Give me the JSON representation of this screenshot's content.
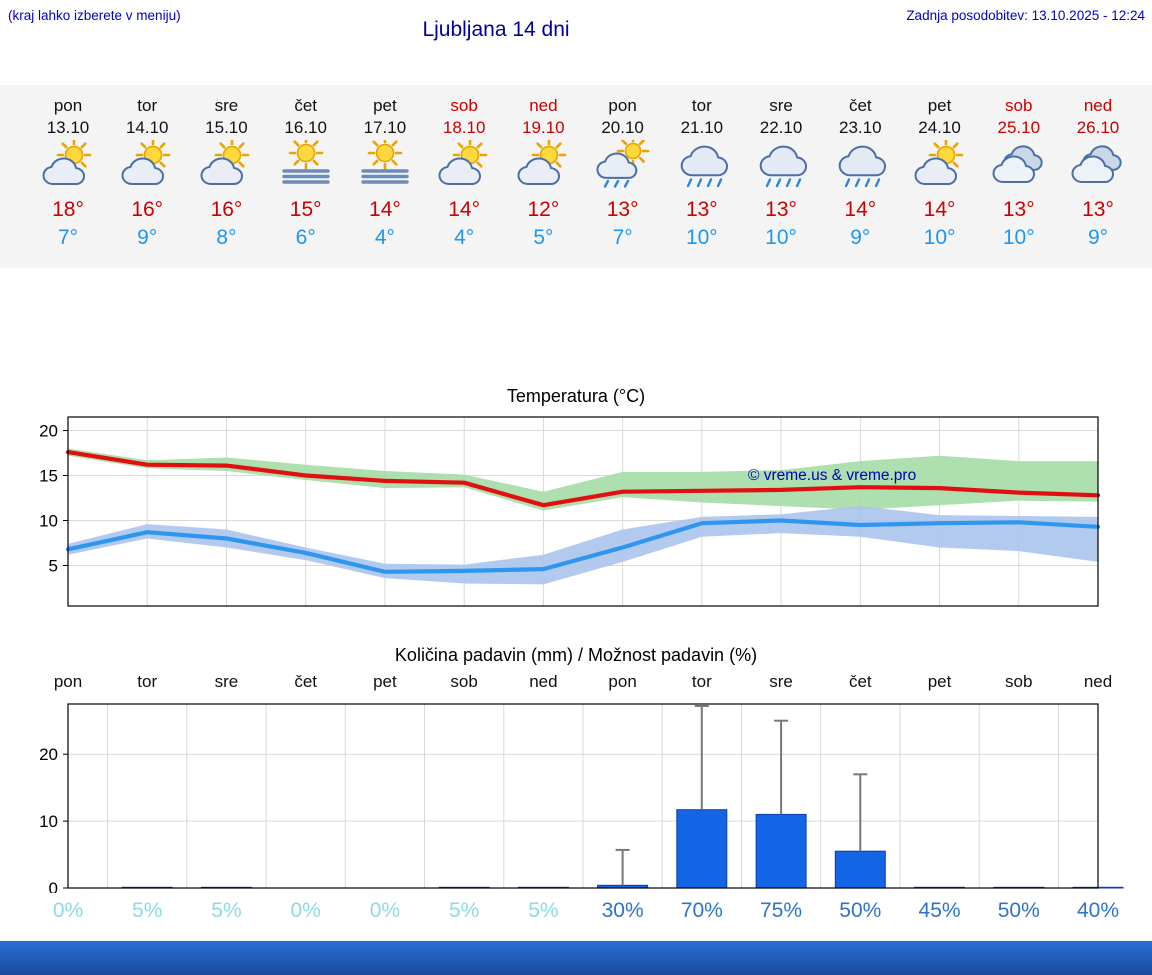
{
  "header": {
    "left_note": "(kraj lahko izberete v meniju)",
    "title": "Ljubljana 14 dni",
    "updated": "Zadnja posodobitev: 13.10.2025 - 12:24"
  },
  "colors": {
    "link_blue": "#0000cc",
    "title_blue": "#000099",
    "weekend_red": "#cc0000",
    "high_temp_red": "#cc0000",
    "low_temp_blue": "#1e96f0",
    "strip_bg": "#f4f4f4",
    "prob_light": "#8ed9e6",
    "prob_strong": "#2d74c9",
    "footer_blue": "#1f5fc0"
  },
  "forecast": {
    "days": [
      {
        "name": "pon",
        "date": "13.10",
        "weekend": false,
        "icon": "partly-cloudy",
        "high": "18°",
        "low": "7°"
      },
      {
        "name": "tor",
        "date": "14.10",
        "weekend": false,
        "icon": "partly-cloudy",
        "high": "16°",
        "low": "9°"
      },
      {
        "name": "sre",
        "date": "15.10",
        "weekend": false,
        "icon": "partly-cloudy",
        "high": "16°",
        "low": "8°"
      },
      {
        "name": "čet",
        "date": "16.10",
        "weekend": false,
        "icon": "fog-sun",
        "high": "15°",
        "low": "6°"
      },
      {
        "name": "pet",
        "date": "17.10",
        "weekend": false,
        "icon": "fog-sun",
        "high": "14°",
        "low": "4°"
      },
      {
        "name": "sob",
        "date": "18.10",
        "weekend": true,
        "icon": "partly-cloudy",
        "high": "14°",
        "low": "4°"
      },
      {
        "name": "ned",
        "date": "19.10",
        "weekend": true,
        "icon": "partly-cloudy",
        "high": "12°",
        "low": "5°"
      },
      {
        "name": "pon",
        "date": "20.10",
        "weekend": false,
        "icon": "sun-rain",
        "high": "13°",
        "low": "7°"
      },
      {
        "name": "tor",
        "date": "21.10",
        "weekend": false,
        "icon": "rain",
        "high": "13°",
        "low": "10°"
      },
      {
        "name": "sre",
        "date": "22.10",
        "weekend": false,
        "icon": "rain",
        "high": "13°",
        "low": "10°"
      },
      {
        "name": "čet",
        "date": "23.10",
        "weekend": false,
        "icon": "rain",
        "high": "14°",
        "low": "9°"
      },
      {
        "name": "pet",
        "date": "24.10",
        "weekend": false,
        "icon": "partly-cloudy",
        "high": "14°",
        "low": "10°"
      },
      {
        "name": "sob",
        "date": "25.10",
        "weekend": true,
        "icon": "cloudy",
        "high": "13°",
        "low": "10°"
      },
      {
        "name": "ned",
        "date": "26.10",
        "weekend": true,
        "icon": "cloudy",
        "high": "13°",
        "low": "9°"
      }
    ]
  },
  "chart_data": [
    {
      "type": "line",
      "title": "Temperatura (°C)",
      "watermark": "© vreme.us & vreme.pro",
      "categories": [
        "13.10",
        "14.10",
        "15.10",
        "16.10",
        "17.10",
        "18.10",
        "19.10",
        "20.10",
        "21.10",
        "22.10",
        "23.10",
        "24.10",
        "25.10",
        "26.10"
      ],
      "ylim": [
        0.5,
        21.5
      ],
      "yticks": [
        5,
        10,
        15,
        20
      ],
      "grid": true,
      "series": [
        {
          "name": "max temperature",
          "color": "#e01010",
          "values": [
            17.6,
            16.2,
            16.1,
            15.0,
            14.4,
            14.2,
            11.7,
            13.2,
            13.3,
            13.4,
            13.7,
            13.6,
            13.1,
            12.8
          ]
        },
        {
          "name": "min temperature",
          "color": "#2f96f0",
          "values": [
            6.8,
            8.7,
            8.0,
            6.4,
            4.3,
            4.4,
            4.6,
            7.0,
            9.7,
            10.0,
            9.5,
            9.7,
            9.8,
            9.3
          ]
        }
      ],
      "bands": [
        {
          "name": "max-temperature-range",
          "color": "#a5dca5",
          "upper": [
            18.0,
            16.7,
            17.0,
            16.2,
            15.5,
            15.1,
            13.2,
            15.4,
            15.4,
            15.6,
            16.6,
            17.2,
            16.6,
            16.6
          ],
          "lower": [
            17.2,
            15.8,
            15.5,
            14.5,
            13.6,
            13.7,
            11.1,
            12.6,
            12.0,
            11.6,
            11.2,
            11.7,
            12.2,
            12.1
          ]
        },
        {
          "name": "min-temperature-range",
          "color": "#a9c4ec",
          "upper": [
            7.4,
            9.6,
            9.0,
            7.0,
            5.2,
            5.1,
            6.2,
            9.0,
            10.4,
            10.7,
            11.6,
            10.6,
            10.5,
            10.4
          ],
          "lower": [
            6.2,
            8.0,
            7.0,
            5.6,
            3.6,
            3.0,
            2.9,
            5.4,
            8.2,
            8.6,
            8.2,
            7.0,
            6.6,
            5.4
          ]
        }
      ]
    },
    {
      "type": "bar",
      "title": "Količina padavin (mm) / Možnost padavin (%)",
      "categories": [
        "pon",
        "tor",
        "sre",
        "čet",
        "pet",
        "sob",
        "ned",
        "pon",
        "tor",
        "sre",
        "čet",
        "pet",
        "sob",
        "ned"
      ],
      "ylim": [
        0,
        27.5
      ],
      "yticks": [
        0,
        10,
        20
      ],
      "grid": true,
      "bar_color": "#1464e6",
      "bar_edge_color": "#0d3fa8",
      "whisker_color": "#777777",
      "values": [
        0,
        0.1,
        0.1,
        0,
        0,
        0.1,
        0.1,
        0.4,
        11.7,
        11.0,
        5.5,
        0.1,
        0.1,
        0.1
      ],
      "whisker_max": [
        0,
        0,
        0,
        0,
        0,
        0,
        0,
        5.7,
        27.2,
        25.0,
        17.0,
        0,
        0,
        0
      ],
      "probabilities": [
        {
          "label": "0%",
          "emphasis": false
        },
        {
          "label": "5%",
          "emphasis": false
        },
        {
          "label": "5%",
          "emphasis": false
        },
        {
          "label": "0%",
          "emphasis": false
        },
        {
          "label": "0%",
          "emphasis": false
        },
        {
          "label": "5%",
          "emphasis": false
        },
        {
          "label": "5%",
          "emphasis": false
        },
        {
          "label": "30%",
          "emphasis": true
        },
        {
          "label": "70%",
          "emphasis": true
        },
        {
          "label": "75%",
          "emphasis": true
        },
        {
          "label": "50%",
          "emphasis": true
        },
        {
          "label": "45%",
          "emphasis": true
        },
        {
          "label": "50%",
          "emphasis": true
        },
        {
          "label": "40%",
          "emphasis": true
        }
      ]
    }
  ]
}
